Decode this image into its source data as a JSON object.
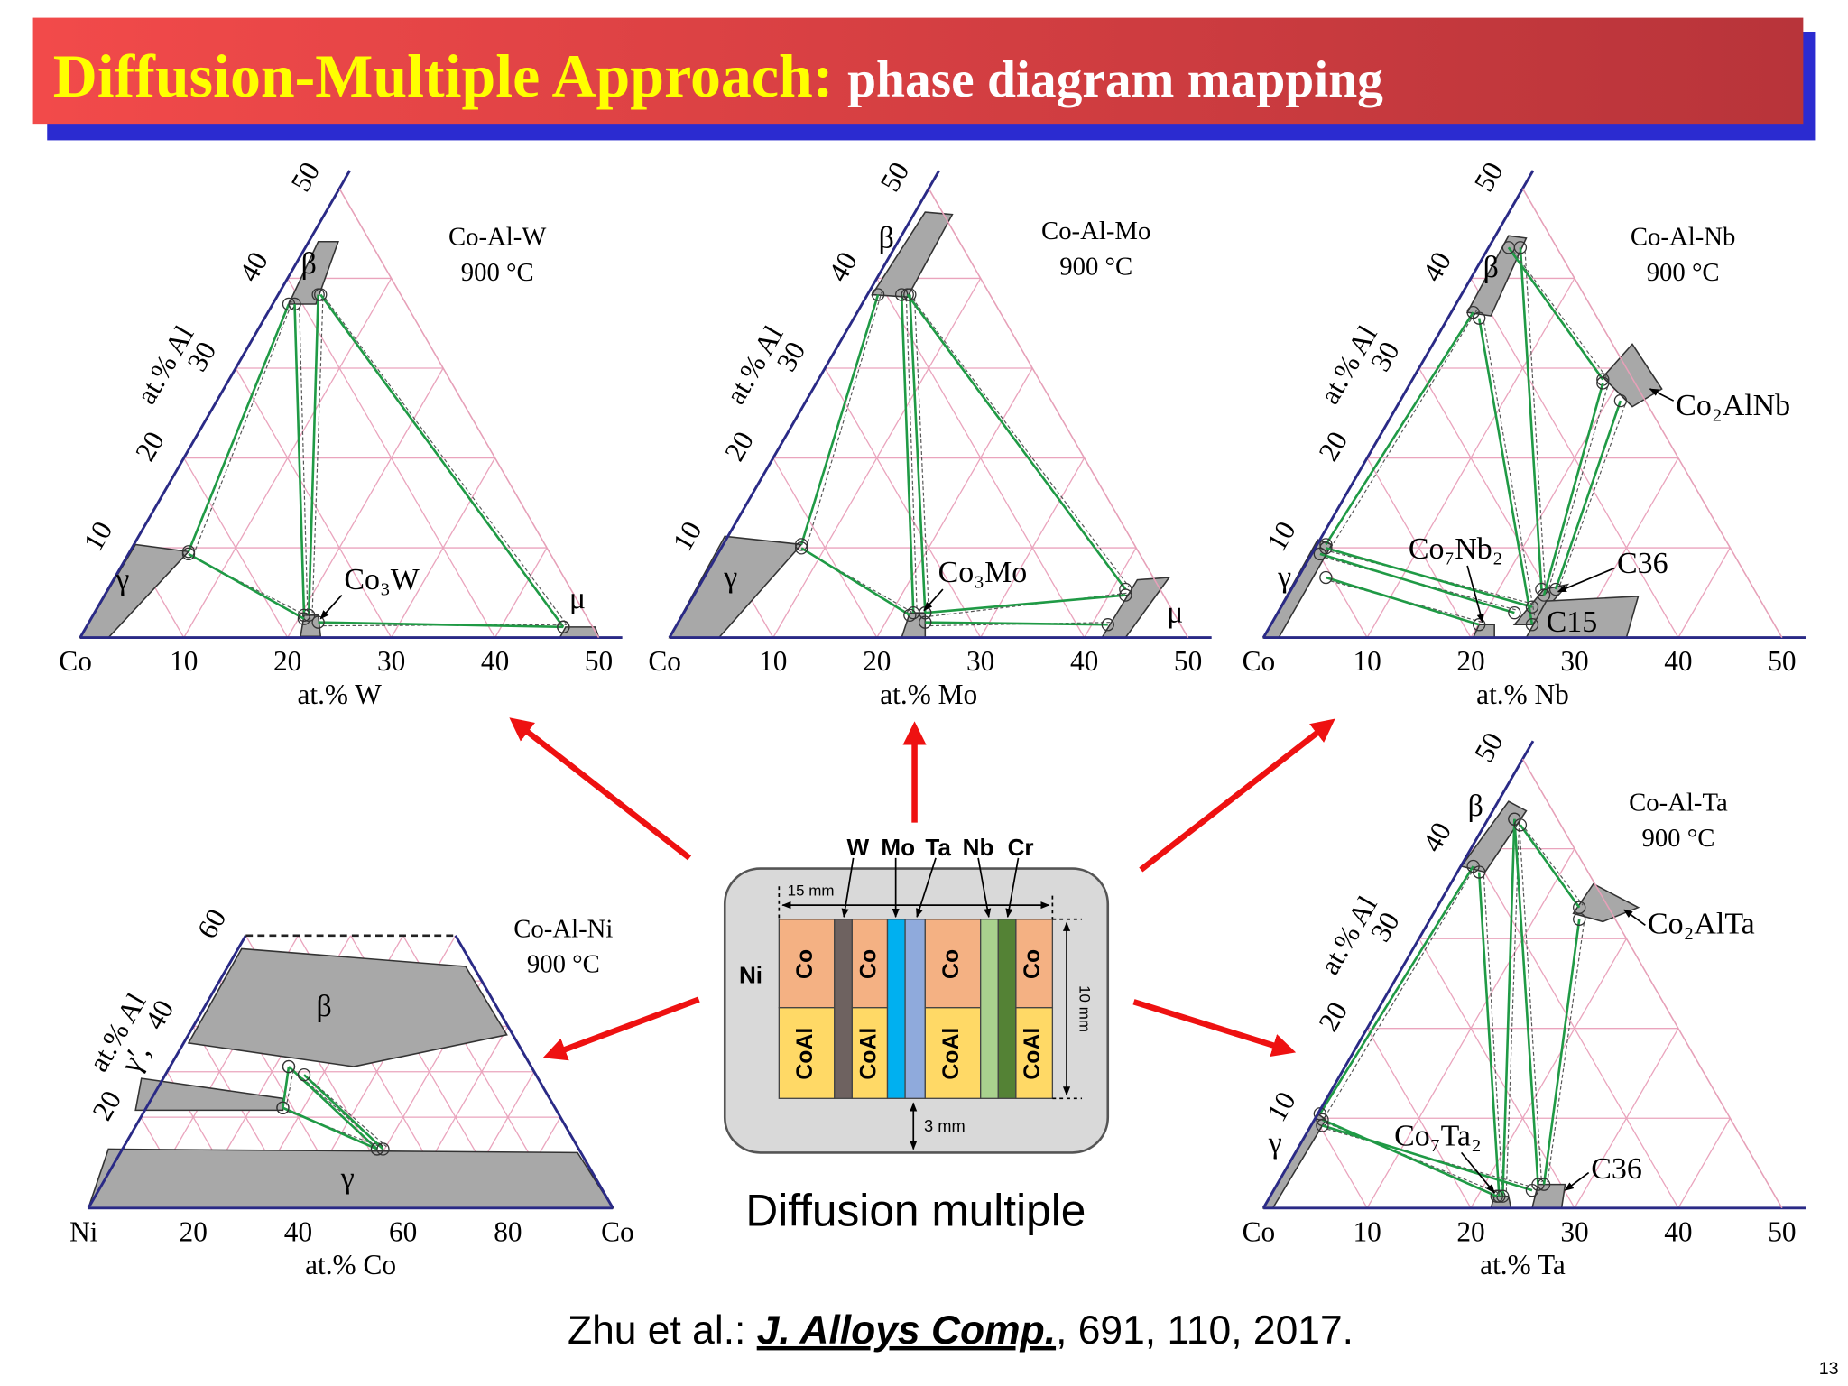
{
  "header": {
    "title": "Diffusion-Multiple Approach:",
    "subtitle": "phase diagram mapping"
  },
  "diagrams": [
    {
      "system": "Co-Al-W",
      "temperature": "900 °C",
      "corners": [
        "Co"
      ],
      "x_axis_label": "at.% W",
      "y_axis_label": "at.% Al",
      "x_ticks": [
        10,
        20,
        30,
        40,
        50
      ],
      "y_ticks": [
        10,
        20,
        30,
        40,
        50
      ],
      "phases": [
        "β",
        "γ",
        "Co₃W",
        "μ"
      ]
    },
    {
      "system": "Co-Al-Mo",
      "temperature": "900 °C",
      "corners": [
        "Co"
      ],
      "x_axis_label": "at.% Mo",
      "y_axis_label": "at.% Al",
      "x_ticks": [
        10,
        20,
        30,
        40,
        50
      ],
      "y_ticks": [
        10,
        20,
        30,
        40,
        50
      ],
      "phases": [
        "β",
        "γ",
        "Co₃Mo",
        "μ"
      ]
    },
    {
      "system": "Co-Al-Nb",
      "temperature": "900 °C",
      "corners": [
        "Co"
      ],
      "x_axis_label": "at.% Nb",
      "y_axis_label": "at.% Al",
      "x_ticks": [
        10,
        20,
        30,
        40,
        50
      ],
      "y_ticks": [
        10,
        20,
        30,
        40,
        50
      ],
      "phases": [
        "β",
        "γ",
        "Co₂AlNb",
        "Co₇Nb₂",
        "C36",
        "C15"
      ]
    },
    {
      "system": "Co-Al-Ni",
      "temperature": "900 °C",
      "corners": [
        "Ni",
        "Co"
      ],
      "x_axis_label": "at.% Co",
      "y_axis_label": "at.% Al",
      "x_ticks": [
        20,
        40,
        60,
        80
      ],
      "y_ticks": [
        20,
        40,
        60
      ],
      "phases": [
        "β",
        "γ′,",
        "γ"
      ]
    },
    {
      "system": "Co-Al-Ta",
      "temperature": "900 °C",
      "corners": [
        "Co"
      ],
      "x_axis_label": "at.% Ta",
      "y_axis_label": "at.% Al",
      "x_ticks": [
        10,
        20,
        30,
        40,
        50
      ],
      "y_ticks": [
        10,
        20,
        30,
        40,
        50
      ],
      "phases": [
        "β",
        "γ",
        "Co₂AlTa",
        "Co₇Ta₂",
        "C36"
      ]
    }
  ],
  "diffusion_multiple": {
    "elements": [
      "W",
      "Mo",
      "Ta",
      "Nb",
      "Cr"
    ],
    "base": "Ni",
    "blocks": [
      "Co",
      "Co",
      "Co",
      "Co"
    ],
    "lower_blocks": [
      "CoAl",
      "CoAl",
      "CoAl",
      "CoAl"
    ],
    "width_label": "15 mm",
    "height_label": "10 mm",
    "gap_label": "3 mm",
    "caption": "Diffusion multiple"
  },
  "citation": {
    "authors": "Zhu et al.: ",
    "journal": "J. Alloys Comp.",
    "details": ", 691, 110, 2017."
  },
  "page_number": "13"
}
